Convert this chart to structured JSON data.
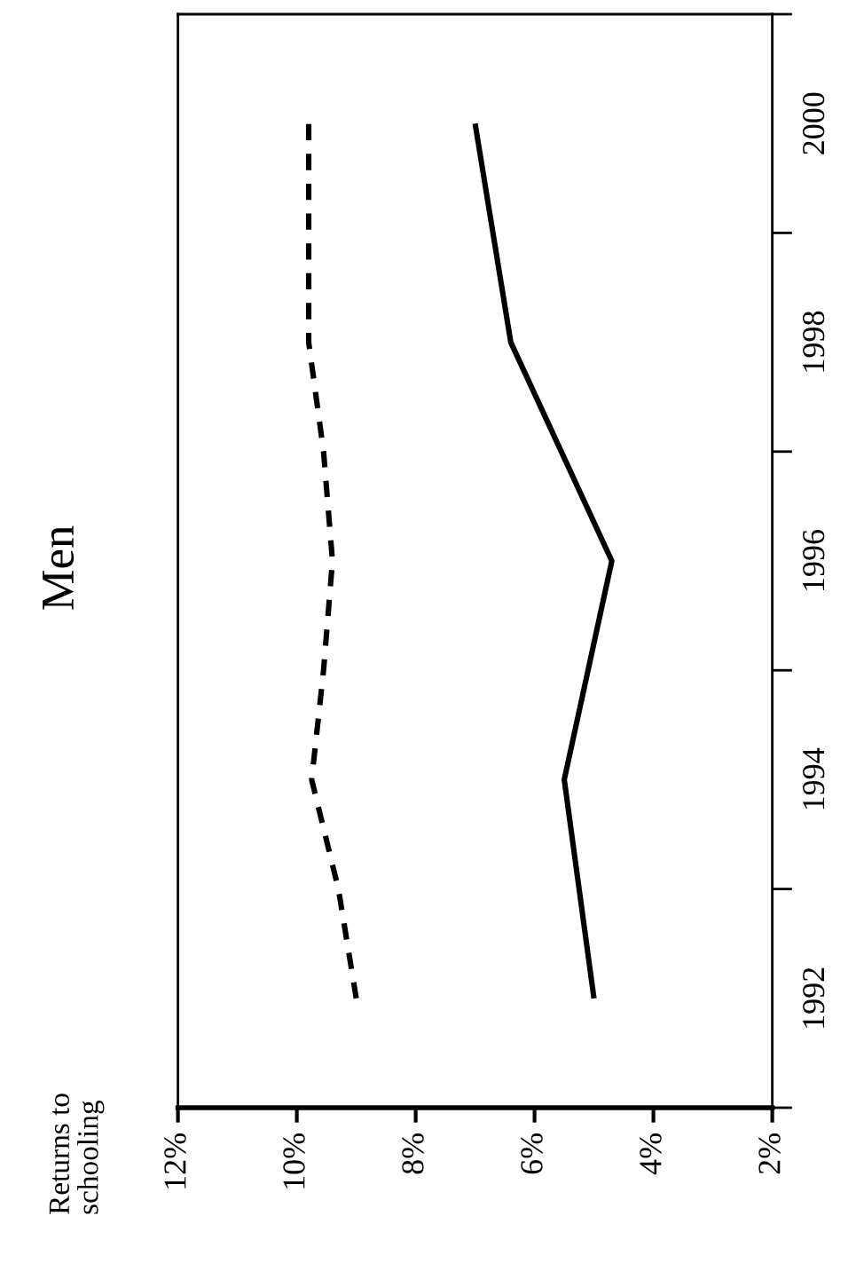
{
  "chart_data": {
    "type": "line",
    "title": "Men",
    "annotations": [
      "Returns to\nschooling"
    ],
    "series": [
      {
        "x": [
          5.0,
          5.5,
          4.7,
          6.4,
          7.0
        ],
        "values": [
          1992,
          1994,
          1996,
          1998,
          2000
        ],
        "color": "#000000",
        "line_style": "solid"
      },
      {
        "x": [
          9.0,
          9.3,
          9.75,
          9.55,
          9.4,
          9.55,
          9.8,
          9.8,
          9.8
        ],
        "values": [
          1992,
          1993,
          1994,
          1995,
          1996,
          1997,
          1998,
          1999,
          2000
        ],
        "color": "#000000",
        "line_style": "dashed"
      }
    ],
    "ylim": [
      1991,
      2001
    ],
    "yticks": [
      {
        "value": 1991,
        "label": null
      },
      {
        "value": 1992,
        "label": "1992"
      },
      {
        "value": 1993,
        "label": null
      },
      {
        "value": 1994,
        "label": "1994"
      },
      {
        "value": 1995,
        "label": null
      },
      {
        "value": 1996,
        "label": "1996"
      },
      {
        "value": 1997,
        "label": null
      },
      {
        "value": 1998,
        "label": "1998"
      },
      {
        "value": 1999,
        "label": null
      },
      {
        "value": 2000,
        "label": "2000"
      },
      {
        "value": 2001,
        "label": null
      }
    ],
    "xlim": [
      12,
      2
    ],
    "xticks": [
      {
        "value": 12,
        "label": "12%"
      },
      {
        "value": 10,
        "label": "10%"
      },
      {
        "value": 8,
        "label": "8%"
      },
      {
        "value": 6,
        "label": "6%"
      },
      {
        "value": 4,
        "label": "4%"
      },
      {
        "value": 2,
        "label": "2%"
      }
    ]
  }
}
